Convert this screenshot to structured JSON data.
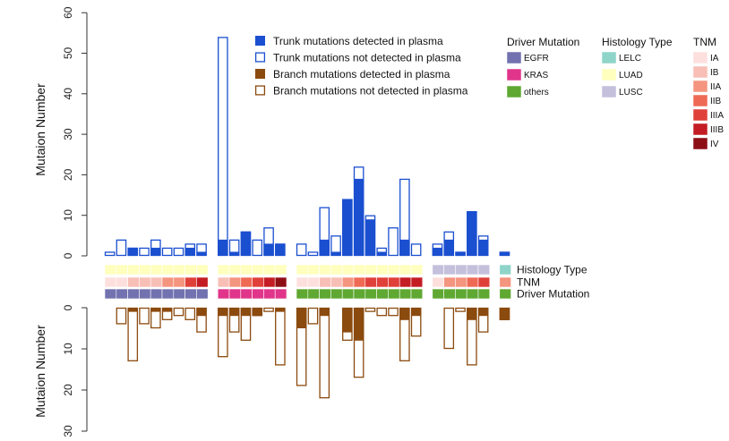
{
  "chart_data": {
    "type": "bar",
    "ylabel_top": "Mutaion Number",
    "ylabel_bottom": "Mutaion Number",
    "top_axis": {
      "ylim": [
        0,
        60
      ],
      "ticks": [
        "0",
        "10",
        "20",
        "30",
        "40",
        "50",
        "60"
      ]
    },
    "bottom_axis": {
      "ylim": [
        0,
        30
      ],
      "ticks": [
        "0",
        "10",
        "20",
        "30"
      ],
      "inverted": true
    },
    "colors": {
      "trunk": "#1a4fd0",
      "branch": "#8b4a0e",
      "egfr": "#7272b0",
      "kras": "#e0358a",
      "others": "#5fa832",
      "lelc": "#8fd4c8",
      "luad": "#ffffbe",
      "lusc": "#c4c0dc",
      "IA": "#fde0dd",
      "IB": "#f8bfb6",
      "IIA": "#f4957f",
      "IIB": "#ef6a55",
      "IIIA": "#e0403a",
      "IIIB": "#c41c24",
      "IV": "#8e0e16"
    },
    "legend_bars": [
      {
        "label": "Trunk mutations detected in plasma",
        "kind": "trunk",
        "filled": true
      },
      {
        "label": "Trunk mutations not detected in plasma",
        "kind": "trunk",
        "filled": false
      },
      {
        "label": "Branch mutations detected in plasma",
        "kind": "branch",
        "filled": true
      },
      {
        "label": "Branch mutations not detected in plasma",
        "kind": "branch",
        "filled": false
      }
    ],
    "legend_driver": {
      "title": "Driver Mutation",
      "items": [
        {
          "label": "EGFR",
          "key": "egfr"
        },
        {
          "label": "KRAS",
          "key": "kras"
        },
        {
          "label": "others",
          "key": "others"
        }
      ]
    },
    "legend_histology": {
      "title": "Histology Type",
      "items": [
        {
          "label": "LELC",
          "key": "lelc"
        },
        {
          "label": "LUAD",
          "key": "luad"
        },
        {
          "label": "LUSC",
          "key": "lusc"
        }
      ]
    },
    "legend_tnm": {
      "title": "TNM",
      "items": [
        {
          "label": "IA",
          "key": "IA"
        },
        {
          "label": "IB",
          "key": "IB"
        },
        {
          "label": "IIA",
          "key": "IIA"
        },
        {
          "label": "IIB",
          "key": "IIB"
        },
        {
          "label": "IIIA",
          "key": "IIIA"
        },
        {
          "label": "IIIB",
          "key": "IIIB"
        },
        {
          "label": "IV",
          "key": "IV"
        }
      ]
    },
    "row_labels": {
      "histology": "Histology Type",
      "tnm": "TNM",
      "driver": "Driver Mutation"
    },
    "groups": [
      {
        "driver": "egfr",
        "histology": "luad",
        "samples": [
          {
            "trunk_det": 0,
            "trunk_total": 1,
            "branch_det": 0,
            "branch_total": 0,
            "tnm": "IA"
          },
          {
            "trunk_det": 0,
            "trunk_total": 4,
            "branch_det": 0,
            "branch_total": 4,
            "tnm": "IA"
          },
          {
            "trunk_det": 2,
            "trunk_total": 2,
            "branch_det": 1,
            "branch_total": 13,
            "tnm": "IB"
          },
          {
            "trunk_det": 0,
            "trunk_total": 2,
            "branch_det": 0,
            "branch_total": 4,
            "tnm": "IB"
          },
          {
            "trunk_det": 2,
            "trunk_total": 4,
            "branch_det": 1,
            "branch_total": 5,
            "tnm": "IB"
          },
          {
            "trunk_det": 0,
            "trunk_total": 2,
            "branch_det": 1,
            "branch_total": 3,
            "tnm": "IIA"
          },
          {
            "trunk_det": 0,
            "trunk_total": 2,
            "branch_det": 0,
            "branch_total": 2,
            "tnm": "IIA"
          },
          {
            "trunk_det": 2,
            "trunk_total": 3,
            "branch_det": 0,
            "branch_total": 3,
            "tnm": "IIIA"
          },
          {
            "trunk_det": 1,
            "trunk_total": 3,
            "branch_det": 2,
            "branch_total": 6,
            "tnm": "IIIB"
          }
        ]
      },
      {
        "driver": "kras",
        "histology": "luad",
        "samples": [
          {
            "trunk_det": 4,
            "trunk_total": 54,
            "branch_det": 2,
            "branch_total": 12,
            "tnm": "IB"
          },
          {
            "trunk_det": 1,
            "trunk_total": 4,
            "branch_det": 2,
            "branch_total": 6,
            "tnm": "IIA"
          },
          {
            "trunk_det": 6,
            "trunk_total": 6,
            "branch_det": 2,
            "branch_total": 8,
            "tnm": "IIB"
          },
          {
            "trunk_det": 0,
            "trunk_total": 4,
            "branch_det": 2,
            "branch_total": 2,
            "tnm": "IIIA"
          },
          {
            "trunk_det": 3,
            "trunk_total": 7,
            "branch_det": 0,
            "branch_total": 1,
            "tnm": "IIIB"
          },
          {
            "trunk_det": 3,
            "trunk_total": 3,
            "branch_det": 1,
            "branch_total": 14,
            "tnm": "IV"
          }
        ]
      },
      {
        "driver": "others",
        "histology": "luad",
        "samples": [
          {
            "trunk_det": 0,
            "trunk_total": 3,
            "branch_det": 5,
            "branch_total": 19,
            "tnm": "IA"
          },
          {
            "trunk_det": 0,
            "trunk_total": 1,
            "branch_det": 0,
            "branch_total": 4,
            "tnm": "IA"
          },
          {
            "trunk_det": 4,
            "trunk_total": 12,
            "branch_det": 2,
            "branch_total": 22,
            "tnm": "IB"
          },
          {
            "trunk_det": 1,
            "trunk_total": 5,
            "branch_det": 0,
            "branch_total": 0,
            "tnm": "IB"
          },
          {
            "trunk_det": 14,
            "trunk_total": 14,
            "branch_det": 6,
            "branch_total": 8,
            "tnm": "IIA"
          },
          {
            "trunk_det": 19,
            "trunk_total": 22,
            "branch_det": 8,
            "branch_total": 17,
            "tnm": "IIB"
          },
          {
            "trunk_det": 9,
            "trunk_total": 10,
            "branch_det": 0,
            "branch_total": 1,
            "tnm": "IIIA"
          },
          {
            "trunk_det": 1,
            "trunk_total": 2,
            "branch_det": 0,
            "branch_total": 2,
            "tnm": "IIIA"
          },
          {
            "trunk_det": 0,
            "trunk_total": 7,
            "branch_det": 0,
            "branch_total": 2,
            "tnm": "IIIA"
          },
          {
            "trunk_det": 4,
            "trunk_total": 19,
            "branch_det": 3,
            "branch_total": 13,
            "tnm": "IIIB"
          },
          {
            "trunk_det": 0,
            "trunk_total": 3,
            "branch_det": 2,
            "branch_total": 7,
            "tnm": "IIIB"
          }
        ]
      },
      {
        "driver": "others",
        "histology": "lusc",
        "samples": [
          {
            "trunk_det": 2,
            "trunk_total": 3,
            "branch_det": 0,
            "branch_total": 0,
            "tnm": "IA"
          },
          {
            "trunk_det": 4,
            "trunk_total": 6,
            "branch_det": 0,
            "branch_total": 10,
            "tnm": "IIA"
          },
          {
            "trunk_det": 1,
            "trunk_total": 1,
            "branch_det": 0,
            "branch_total": 1,
            "tnm": "IIA"
          },
          {
            "trunk_det": 11,
            "trunk_total": 11,
            "branch_det": 3,
            "branch_total": 14,
            "tnm": "IIB"
          },
          {
            "trunk_det": 4,
            "trunk_total": 5,
            "branch_det": 2,
            "branch_total": 6,
            "tnm": "IIIA"
          }
        ]
      },
      {
        "driver": "others",
        "histology": "lelc",
        "samples": [
          {
            "trunk_det": 1,
            "trunk_total": 1,
            "branch_det": 3,
            "branch_total": 3,
            "tnm": "IIA"
          }
        ]
      }
    ]
  }
}
